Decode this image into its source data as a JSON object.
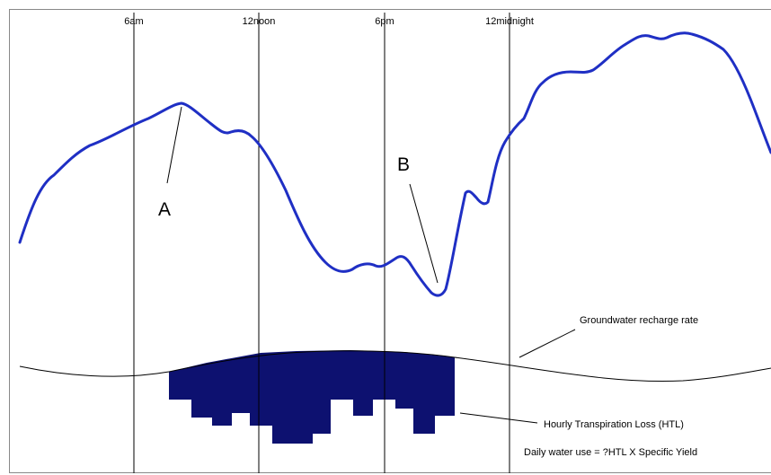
{
  "diagram": {
    "time_labels": [
      "6am",
      "12noon",
      "6pm",
      "12midnight"
    ],
    "markers": {
      "a": "A",
      "b": "B"
    },
    "annotations": {
      "recharge": "Groundwater recharge rate",
      "htl": "Hourly Transpiration Loss (HTL)",
      "daily": "Daily water use = ?HTL X Specific Yield"
    },
    "colors": {
      "water_table_curve": "#1f2fc4",
      "htl_fill": "#0d1170",
      "gridline": "#000000",
      "recharge_curve": "#000000",
      "background": "#ffffff"
    }
  }
}
